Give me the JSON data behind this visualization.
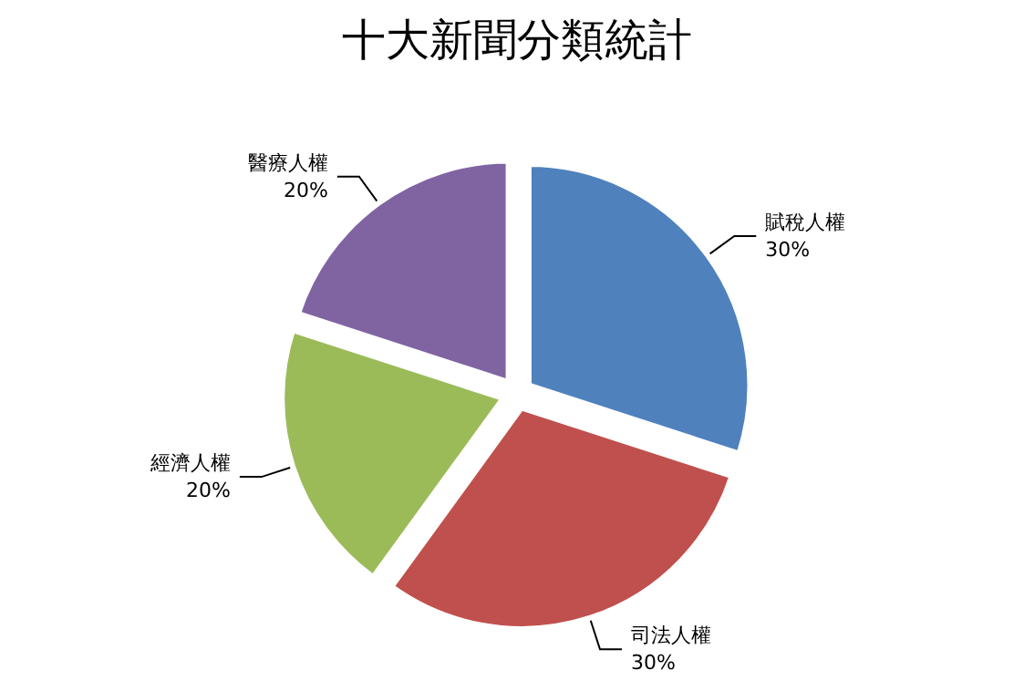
{
  "chart_data": {
    "type": "pie",
    "title": "十大新聞分類統計",
    "categories": [
      "賦稅人權",
      "司法人權",
      "經濟人權",
      "醫療人權"
    ],
    "values": [
      30,
      30,
      20,
      20
    ],
    "colors": [
      "#4f81bd",
      "#c0504d",
      "#9bbb59",
      "#8064a2"
    ],
    "value_labels": [
      "30%",
      "30%",
      "20%",
      "20%"
    ],
    "legend": false
  }
}
